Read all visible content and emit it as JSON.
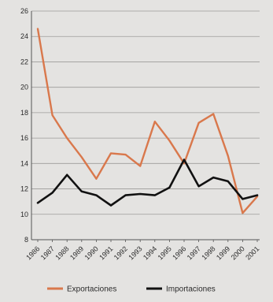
{
  "chart_data": {
    "type": "line",
    "title": "",
    "xlabel": "",
    "ylabel": "",
    "x": [
      "1986",
      "1987",
      "1988",
      "1989",
      "1990",
      "1991",
      "1992",
      "1993",
      "1994",
      "1995",
      "1996",
      "1997",
      "1998",
      "1999",
      "2000",
      "2001"
    ],
    "ylim": [
      8,
      26
    ],
    "yticks": [
      8,
      10,
      12,
      14,
      16,
      18,
      20,
      22,
      24,
      26
    ],
    "grid": true,
    "legend_position": "bottom",
    "series": [
      {
        "name": "Exportaciones",
        "color": "#d9784c",
        "values": [
          24.6,
          17.8,
          16.0,
          14.5,
          12.8,
          14.8,
          14.7,
          13.8,
          17.3,
          15.8,
          14.0,
          17.2,
          17.9,
          14.6,
          10.1,
          11.4
        ]
      },
      {
        "name": "Importaciones",
        "color": "#111111",
        "values": [
          10.9,
          11.7,
          13.1,
          11.8,
          11.5,
          10.7,
          11.5,
          11.6,
          11.5,
          12.1,
          14.3,
          12.2,
          12.9,
          12.6,
          11.2,
          11.5
        ]
      }
    ]
  }
}
